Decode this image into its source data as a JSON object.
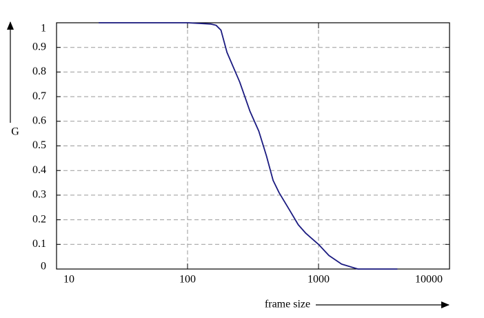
{
  "chart_data": {
    "type": "line",
    "xlabel": "frame size",
    "ylabel": "G",
    "xscale": "log",
    "grid": true,
    "x": [
      21,
      40,
      100,
      150,
      165,
      180,
      200,
      250,
      300,
      350,
      400,
      450,
      500,
      600,
      700,
      800,
      1000,
      1200,
      1500,
      2000,
      3000,
      4000
    ],
    "series": [
      {
        "name": "G",
        "color": "#1a1a80",
        "values": [
          1,
          1,
          1,
          0.995,
          0.99,
          0.97,
          0.88,
          0.76,
          0.64,
          0.56,
          0.46,
          0.36,
          0.31,
          0.24,
          0.18,
          0.145,
          0.1,
          0.055,
          0.02,
          0,
          0,
          0
        ]
      }
    ],
    "xlim": [
      10,
      10000
    ],
    "xticks": [
      10,
      100,
      1000,
      10000
    ],
    "ylim": [
      0,
      1
    ],
    "yticks": [
      0,
      0.1,
      0.2,
      0.3,
      0.4,
      0.5,
      0.6,
      0.7,
      0.8,
      0.9,
      1
    ]
  }
}
